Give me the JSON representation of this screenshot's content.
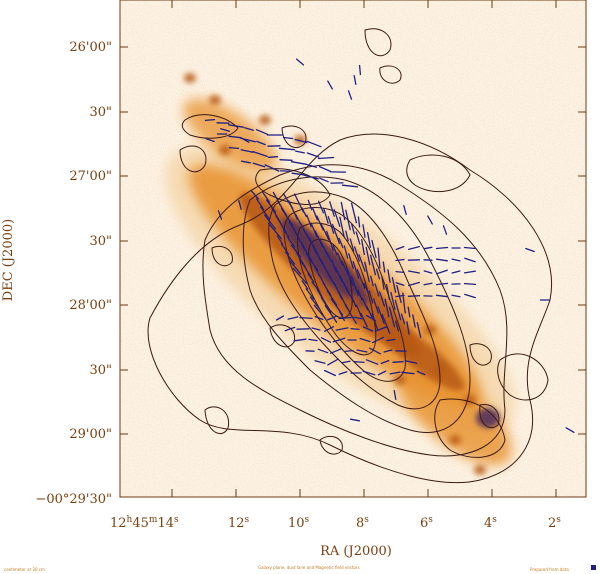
{
  "figure": {
    "colors": {
      "background": "#fcf3e6",
      "emission_low": "#f2c98f",
      "emission_mid": "#e8922e",
      "emission_high": "#b85a12",
      "core": "#4a2a5c",
      "contour": "#3a1a14",
      "vectors": "#1f1f86",
      "axis_text": "#7a4010"
    },
    "axes": {
      "x_title": "RA (J2000)",
      "y_title": "DEC (J2000)",
      "x_ticks": [
        {
          "base": "12",
          "sup1": "h",
          "mid": "45",
          "sup2": "m",
          "sec": "14",
          "sup3": "s"
        },
        {
          "sec": "12",
          "sup": "s"
        },
        {
          "sec": "10",
          "sup": "s"
        },
        {
          "sec": "8",
          "sup": "s"
        },
        {
          "sec": "6",
          "sup": "s"
        },
        {
          "sec": "4",
          "sup": "s"
        },
        {
          "sec": "2",
          "sup": "s"
        }
      ],
      "y_ticks": [
        "26'00\"",
        "30\"",
        "27'00\"",
        "30\"",
        "28'00\"",
        "30\"",
        "29'00\"",
        "−00°29'30\""
      ]
    },
    "footer": {
      "left": "centimeter at 20 cm",
      "center": "Galaxy plane, dust lane and Magnetic field vectors",
      "right": "Prepared from data"
    },
    "legend_square": "#1f1f86"
  }
}
